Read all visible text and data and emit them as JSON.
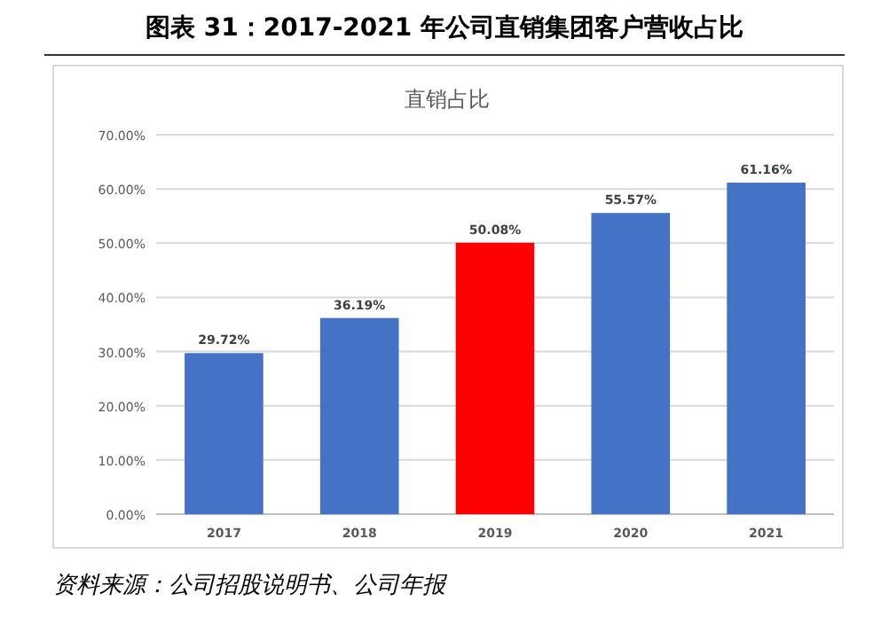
{
  "chart_data": {
    "type": "bar",
    "title": "图表 31：2017-2021 年公司直销集团客户营收占比",
    "subtitle": "直销占比",
    "categories": [
      "2017",
      "2018",
      "2019",
      "2020",
      "2021"
    ],
    "values": [
      29.72,
      36.19,
      50.08,
      55.57,
      61.16
    ],
    "colors": [
      "#4472c4",
      "#4472c4",
      "#ff0000",
      "#4472c4",
      "#4472c4"
    ],
    "value_labels": [
      "29.72%",
      "36.19%",
      "50.08%",
      "55.57%",
      "61.16%"
    ],
    "ylim": [
      0,
      70
    ],
    "yticks": [
      {
        "value": 0,
        "label": "0.00%"
      },
      {
        "value": 10,
        "label": "10.00%"
      },
      {
        "value": 20,
        "label": "20.00%"
      },
      {
        "value": 30,
        "label": "30.00%"
      },
      {
        "value": 40,
        "label": "40.00%"
      },
      {
        "value": 50,
        "label": "50.00%"
      },
      {
        "value": 60,
        "label": "60.00%"
      },
      {
        "value": 70,
        "label": "70.00%"
      }
    ],
    "grid": "y",
    "annotations": [
      "资料来源：公司招股说明书、公司年报"
    ]
  }
}
